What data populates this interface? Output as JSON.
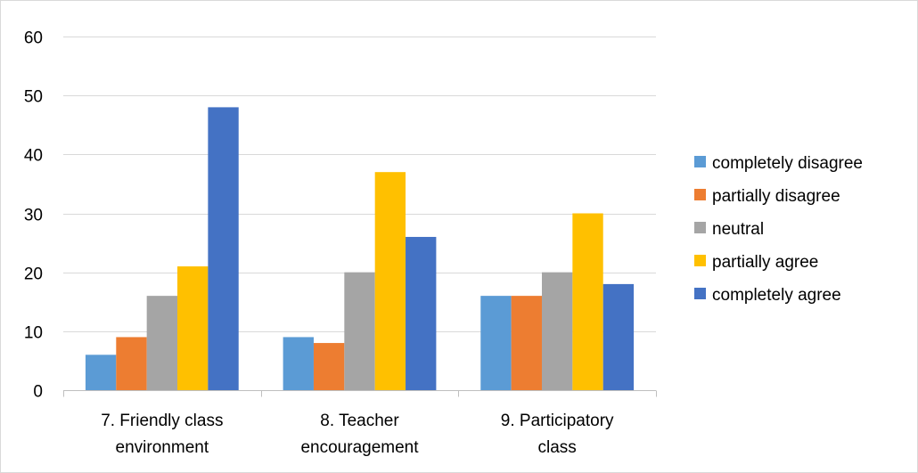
{
  "chart_data": {
    "type": "bar",
    "categories": [
      [
        "7. Friendly class",
        "environment"
      ],
      [
        "8. Teacher",
        "encouragement"
      ],
      [
        "9. Participatory",
        "class"
      ]
    ],
    "series": [
      {
        "name": "completely disagree",
        "color": "#5b9bd5",
        "values": [
          6,
          9,
          16
        ]
      },
      {
        "name": "partially disagree",
        "color": "#ed7d31",
        "values": [
          9,
          8,
          16
        ]
      },
      {
        "name": "neutral",
        "color": "#a5a5a5",
        "values": [
          16,
          20,
          20
        ]
      },
      {
        "name": "partially agree",
        "color": "#ffc000",
        "values": [
          21,
          37,
          30
        ]
      },
      {
        "name": "completely agree",
        "color": "#4472c4",
        "values": [
          48,
          26,
          18
        ]
      }
    ],
    "ylim": [
      0,
      60
    ],
    "yticks": [
      0,
      10,
      20,
      30,
      40,
      50,
      60
    ],
    "grid": true,
    "legend_position": "right"
  }
}
